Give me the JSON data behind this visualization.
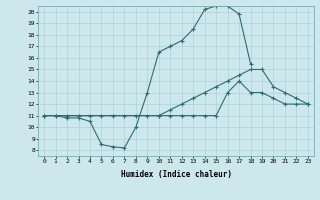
{
  "xlabel": "Humidex (Indice chaleur)",
  "ylabel": "",
  "bg_color": "#cce8ec",
  "line_color": "#2e6e6a",
  "grid_color": "#aaccd0",
  "xlim": [
    -0.5,
    23.5
  ],
  "ylim": [
    7.5,
    20.5
  ],
  "xticks": [
    0,
    1,
    2,
    3,
    4,
    5,
    6,
    7,
    8,
    9,
    10,
    11,
    12,
    13,
    14,
    15,
    16,
    17,
    18,
    19,
    20,
    21,
    22,
    23
  ],
  "yticks": [
    8,
    9,
    10,
    11,
    12,
    13,
    14,
    15,
    16,
    17,
    18,
    19,
    20
  ],
  "line1_x": [
    0,
    1,
    2,
    3,
    4,
    5,
    6,
    7,
    8,
    9,
    10,
    11,
    12,
    13,
    14,
    15,
    16,
    17,
    18
  ],
  "line1_y": [
    11,
    11,
    10.8,
    10.8,
    10.5,
    8.5,
    8.3,
    8.2,
    10,
    13,
    16.5,
    17,
    17.5,
    18.5,
    20.2,
    20.5,
    20.5,
    19.8,
    15.5
  ],
  "line2_x": [
    0,
    1,
    2,
    3,
    4,
    5,
    6,
    7,
    8,
    9,
    10,
    11,
    12,
    13,
    14,
    15,
    16,
    17,
    18,
    19,
    20,
    21,
    22,
    23
  ],
  "line2_y": [
    11,
    11,
    11,
    11,
    11,
    11,
    11,
    11,
    11,
    11,
    11,
    11,
    11,
    11,
    11,
    11,
    13,
    14,
    13,
    13,
    12.5,
    12,
    12,
    12
  ],
  "line3_x": [
    0,
    10,
    11,
    12,
    13,
    14,
    15,
    16,
    17,
    18,
    19,
    20,
    21,
    22,
    23
  ],
  "line3_y": [
    11,
    11,
    11.5,
    12,
    12.5,
    13,
    13.5,
    14,
    14.5,
    15,
    15,
    13.5,
    13,
    12.5,
    12
  ]
}
